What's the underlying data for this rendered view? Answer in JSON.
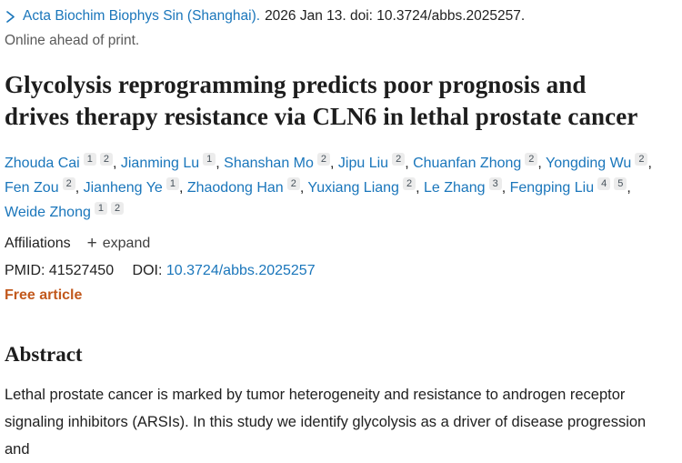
{
  "colors": {
    "link_blue": "#1a76bb",
    "text_dark": "#212121",
    "status_gray": "#5a5a5a",
    "free_article_orange": "#c2591d",
    "badge_bg": "#ececec"
  },
  "citation": {
    "journal": "Acta Biochim Biophys Sin (Shanghai).",
    "rest": "2026 Jan 13. doi: 10.3724/abbs.2025257.",
    "status": "Online ahead of print."
  },
  "title": "Glycolysis reprogramming predicts poor prognosis and drives therapy resistance via CLN6 in lethal prostate cancer",
  "authors": [
    {
      "name": "Zhouda Cai",
      "sups": [
        "1",
        "2"
      ]
    },
    {
      "name": "Jianming Lu",
      "sups": [
        "1"
      ]
    },
    {
      "name": "Shanshan Mo",
      "sups": [
        "2"
      ]
    },
    {
      "name": "Jipu Liu",
      "sups": [
        "2"
      ]
    },
    {
      "name": "Chuanfan Zhong",
      "sups": [
        "2"
      ]
    },
    {
      "name": "Yongding Wu",
      "sups": [
        "2"
      ]
    },
    {
      "name": "Fen Zou",
      "sups": [
        "2"
      ]
    },
    {
      "name": "Jianheng Ye",
      "sups": [
        "1"
      ]
    },
    {
      "name": "Zhaodong Han",
      "sups": [
        "2"
      ]
    },
    {
      "name": "Yuxiang Liang",
      "sups": [
        "2"
      ]
    },
    {
      "name": "Le Zhang",
      "sups": [
        "3"
      ]
    },
    {
      "name": "Fengping Liu",
      "sups": [
        "4",
        "5"
      ]
    },
    {
      "name": "Weide Zhong",
      "sups": [
        "1",
        "2"
      ]
    }
  ],
  "meta": {
    "affiliations_label": "Affiliations",
    "expand_label": "expand",
    "plus_glyph": "+",
    "pmid_label": "PMID:",
    "pmid_value": "41527450",
    "doi_label": "DOI:",
    "doi_value": "10.3724/abbs.2025257",
    "free_article": "Free article"
  },
  "abstract": {
    "heading": "Abstract",
    "text": "Lethal prostate cancer is marked by tumor heterogeneity and resistance to androgen receptor signaling inhibitors (ARSIs). In this study we identify glycolysis as a driver of disease progression and"
  }
}
